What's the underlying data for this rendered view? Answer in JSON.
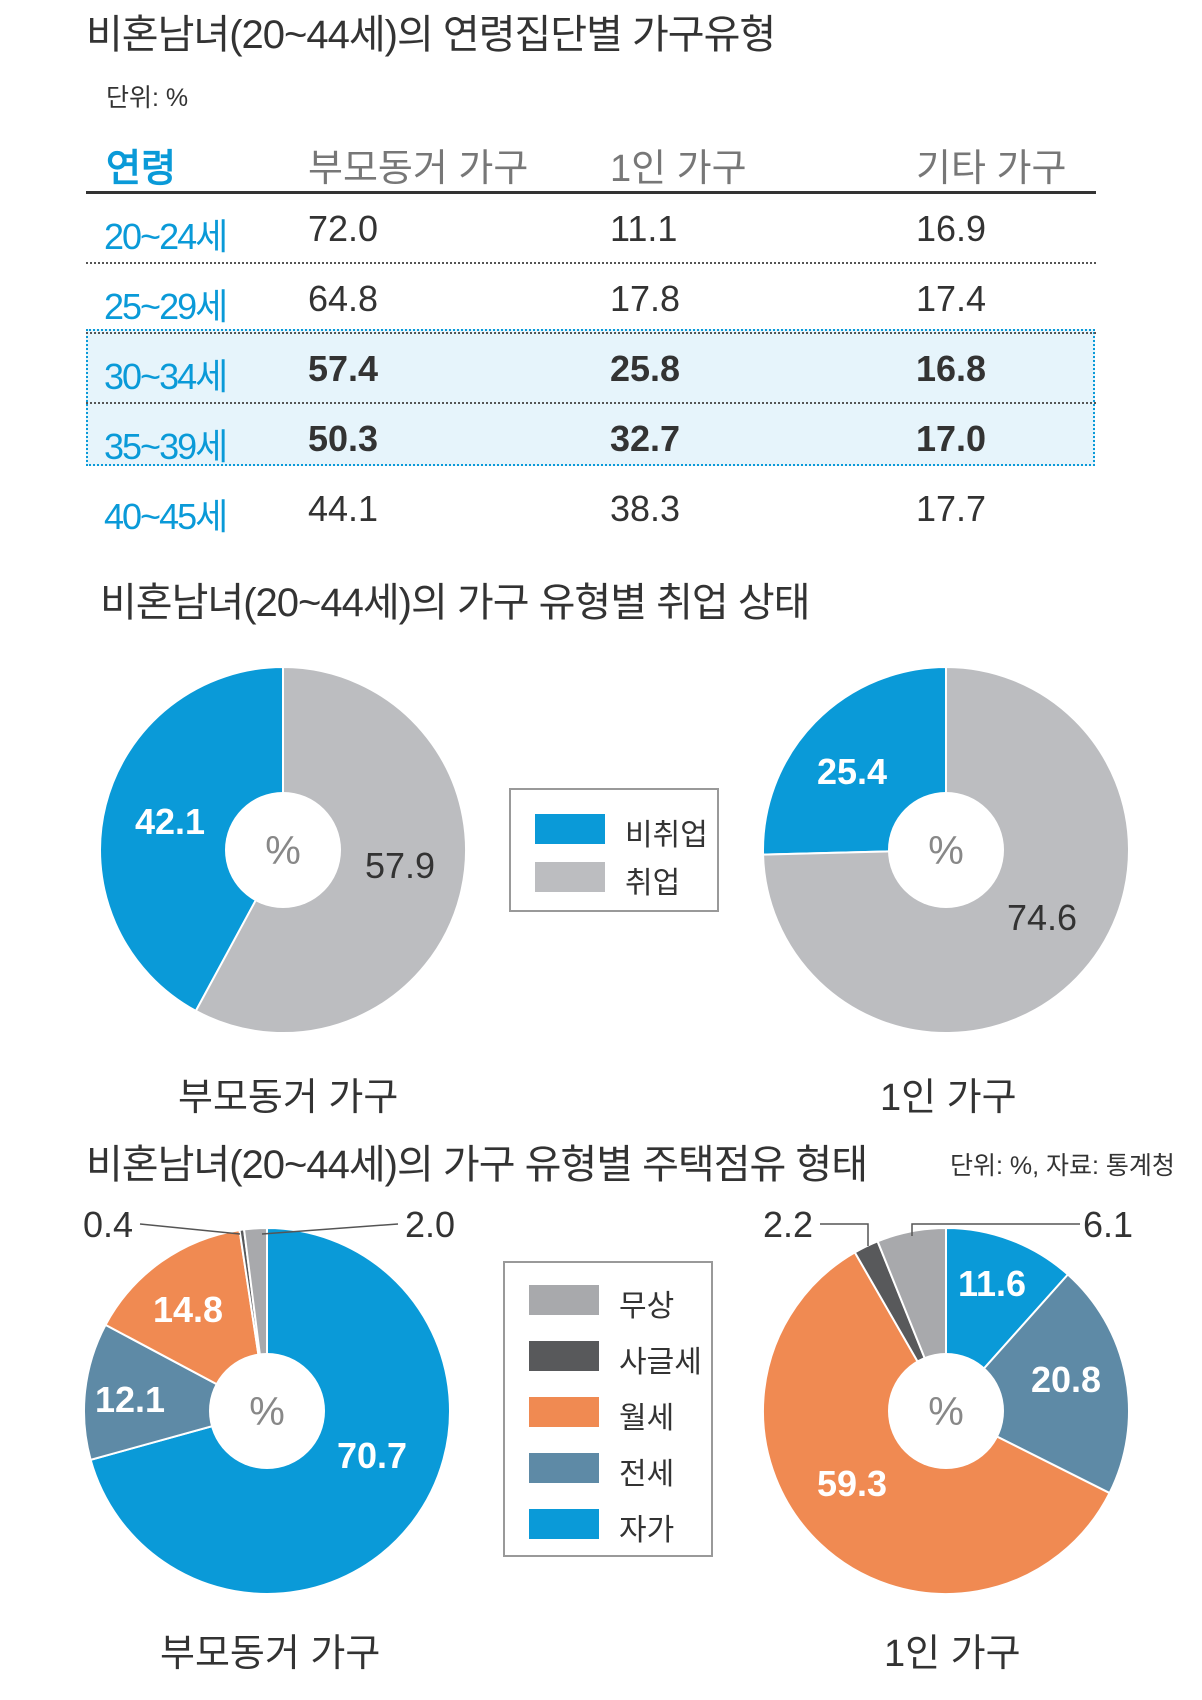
{
  "colors": {
    "blue": "#0a9ad8",
    "gray": "#bcbdc0",
    "orange": "#f08a52",
    "steel": "#5e8aa6",
    "dark": "#58595b",
    "light_gray": "#a8a9ac"
  },
  "table": {
    "title": "비혼남녀(20~44세)의 연령집단별 가구유형",
    "unit": "단위: %",
    "headers": [
      "연령",
      "부모동거 가구",
      "1인 가구",
      "기타 가구"
    ],
    "rows": [
      {
        "age": "20~24세",
        "v1": "72.0",
        "v2": "11.1",
        "v3": "16.9"
      },
      {
        "age": "25~29세",
        "v1": "64.8",
        "v2": "17.8",
        "v3": "17.4"
      },
      {
        "age": "30~34세",
        "v1": "57.4",
        "v2": "25.8",
        "v3": "16.8"
      },
      {
        "age": "35~39세",
        "v1": "50.3",
        "v2": "32.7",
        "v3": "17.0"
      },
      {
        "age": "40~45세",
        "v1": "44.1",
        "v2": "38.3",
        "v3": "17.7"
      }
    ]
  },
  "employment": {
    "title": "비혼남녀(20~44세)의 가구 유형별 취업 상태",
    "legend": [
      "비취업",
      "취업"
    ]
  },
  "housing": {
    "title": "비혼남녀(20~44세)의 가구 유형별 주택점유 형태",
    "source": "단위: %, 자료: 통계청",
    "legend": [
      "무상",
      "사글세",
      "월세",
      "전세",
      "자가"
    ]
  },
  "center_label": "%",
  "chart_data": [
    {
      "type": "pie",
      "title": "비혼남녀(20~44세)의 가구 유형별 취업 상태",
      "caption": "부모동거 가구",
      "labels": [
        "비취업",
        "취업"
      ],
      "values": [
        42.1,
        57.9
      ],
      "value_labels": [
        "42.1",
        "57.9"
      ]
    },
    {
      "type": "pie",
      "title": "비혼남녀(20~44세)의 가구 유형별 취업 상태",
      "caption": "1인 가구",
      "labels": [
        "비취업",
        "취업"
      ],
      "values": [
        25.4,
        74.6
      ],
      "value_labels": [
        "25.4",
        "74.6"
      ]
    },
    {
      "type": "pie",
      "title": "비혼남녀(20~44세)의 가구 유형별 주택점유 형태",
      "caption": "부모동거 가구",
      "labels": [
        "자가",
        "전세",
        "월세",
        "사글세",
        "무상"
      ],
      "values": [
        70.7,
        12.1,
        14.8,
        0.4,
        2.0
      ],
      "value_labels": [
        "70.7",
        "12.1",
        "14.8",
        "0.4",
        "2.0"
      ]
    },
    {
      "type": "pie",
      "title": "비혼남녀(20~44세)의 가구 유형별 주택점유 형태",
      "caption": "1인 가구",
      "labels": [
        "자가",
        "전세",
        "월세",
        "사글세",
        "무상"
      ],
      "values": [
        11.6,
        20.8,
        59.3,
        2.2,
        6.1
      ],
      "value_labels": [
        "11.6",
        "20.8",
        "59.3",
        "2.2",
        "6.1"
      ]
    }
  ]
}
